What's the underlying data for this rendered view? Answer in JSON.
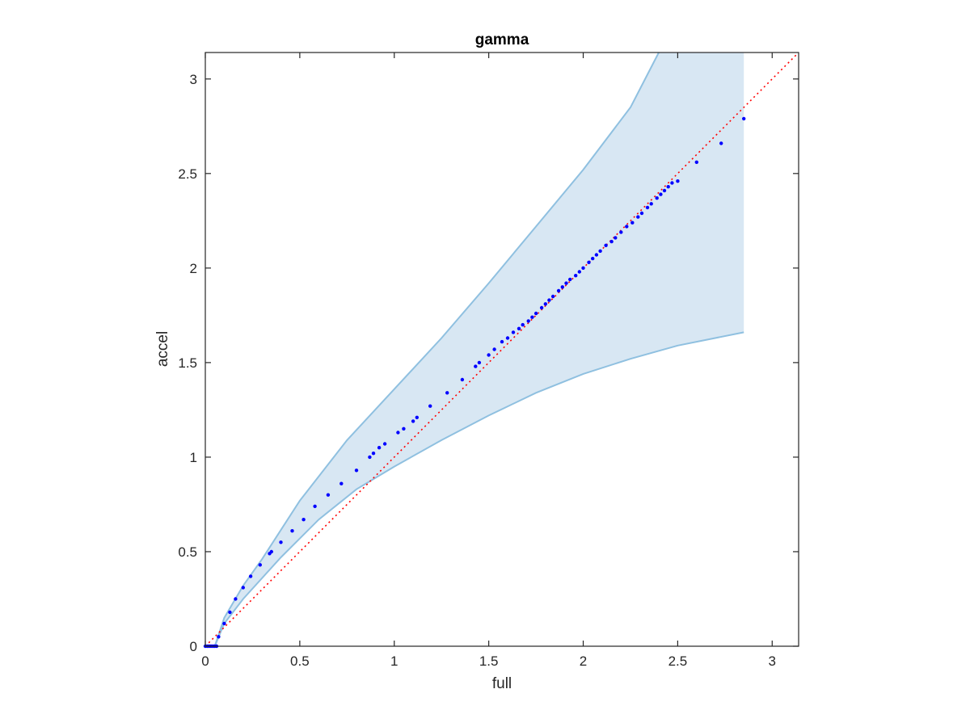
{
  "chart_data": {
    "type": "scatter",
    "title": "gamma",
    "xlabel": "full",
    "ylabel": "accel",
    "xlim": [
      0,
      3.14
    ],
    "ylim": [
      0,
      3.14
    ],
    "xticks": [
      "0",
      "0.5",
      "1",
      "1.5",
      "2",
      "2.5",
      "3"
    ],
    "yticks": [
      "0",
      "0.5",
      "1",
      "1.5",
      "2",
      "2.5",
      "3"
    ],
    "xtick_values": [
      0,
      0.5,
      1,
      1.5,
      2,
      2.5,
      3
    ],
    "ytick_values": [
      0,
      0.5,
      1,
      1.5,
      2,
      2.5,
      3
    ],
    "grid": false,
    "colors": {
      "points": "#0000ff",
      "band_fill": "#d8e7f3",
      "band_edge": "#8fc0e0",
      "reference_line": "#ff0000",
      "axes": "#262626"
    },
    "reference_line": {
      "style": "dotted",
      "from": [
        0,
        0
      ],
      "to": [
        3.14,
        3.14
      ]
    },
    "band": {
      "upper": [
        [
          0.05,
          0.0
        ],
        [
          0.1,
          0.15
        ],
        [
          0.2,
          0.32
        ],
        [
          0.3,
          0.46
        ],
        [
          0.5,
          0.77
        ],
        [
          0.75,
          1.09
        ],
        [
          1.0,
          1.36
        ],
        [
          1.25,
          1.63
        ],
        [
          1.5,
          1.92
        ],
        [
          1.75,
          2.22
        ],
        [
          2.0,
          2.52
        ],
        [
          2.25,
          2.85
        ],
        [
          2.4,
          3.14
        ],
        [
          2.85,
          3.14
        ]
      ],
      "lower": [
        [
          0.05,
          0.0
        ],
        [
          0.1,
          0.12
        ],
        [
          0.2,
          0.25
        ],
        [
          0.4,
          0.47
        ],
        [
          0.6,
          0.67
        ],
        [
          0.8,
          0.83
        ],
        [
          1.0,
          0.95
        ],
        [
          1.25,
          1.09
        ],
        [
          1.5,
          1.22
        ],
        [
          1.75,
          1.34
        ],
        [
          2.0,
          1.44
        ],
        [
          2.25,
          1.52
        ],
        [
          2.5,
          1.59
        ],
        [
          2.85,
          1.66
        ]
      ]
    },
    "points": [
      [
        0.0,
        0.0
      ],
      [
        0.01,
        0.0
      ],
      [
        0.02,
        0.0
      ],
      [
        0.03,
        0.0
      ],
      [
        0.04,
        0.0
      ],
      [
        0.05,
        0.0
      ],
      [
        0.06,
        0.0
      ],
      [
        0.07,
        0.05
      ],
      [
        0.1,
        0.12
      ],
      [
        0.13,
        0.18
      ],
      [
        0.16,
        0.25
      ],
      [
        0.2,
        0.31
      ],
      [
        0.24,
        0.37
      ],
      [
        0.29,
        0.43
      ],
      [
        0.34,
        0.49
      ],
      [
        0.35,
        0.5
      ],
      [
        0.4,
        0.55
      ],
      [
        0.46,
        0.61
      ],
      [
        0.52,
        0.67
      ],
      [
        0.58,
        0.74
      ],
      [
        0.65,
        0.8
      ],
      [
        0.72,
        0.86
      ],
      [
        0.8,
        0.93
      ],
      [
        0.87,
        1.0
      ],
      [
        0.89,
        1.02
      ],
      [
        0.92,
        1.05
      ],
      [
        0.95,
        1.07
      ],
      [
        1.02,
        1.13
      ],
      [
        1.05,
        1.15
      ],
      [
        1.1,
        1.19
      ],
      [
        1.12,
        1.21
      ],
      [
        1.19,
        1.27
      ],
      [
        1.28,
        1.34
      ],
      [
        1.36,
        1.41
      ],
      [
        1.43,
        1.48
      ],
      [
        1.45,
        1.5
      ],
      [
        1.5,
        1.54
      ],
      [
        1.53,
        1.57
      ],
      [
        1.57,
        1.61
      ],
      [
        1.6,
        1.63
      ],
      [
        1.63,
        1.66
      ],
      [
        1.66,
        1.68
      ],
      [
        1.68,
        1.7
      ],
      [
        1.71,
        1.72
      ],
      [
        1.73,
        1.74
      ],
      [
        1.75,
        1.76
      ],
      [
        1.78,
        1.79
      ],
      [
        1.8,
        1.81
      ],
      [
        1.82,
        1.83
      ],
      [
        1.84,
        1.85
      ],
      [
        1.87,
        1.88
      ],
      [
        1.89,
        1.9
      ],
      [
        1.91,
        1.92
      ],
      [
        1.93,
        1.94
      ],
      [
        1.96,
        1.96
      ],
      [
        1.98,
        1.98
      ],
      [
        2.0,
        2.0
      ],
      [
        2.03,
        2.03
      ],
      [
        2.05,
        2.05
      ],
      [
        2.07,
        2.07
      ],
      [
        2.09,
        2.09
      ],
      [
        2.12,
        2.12
      ],
      [
        2.15,
        2.14
      ],
      [
        2.17,
        2.16
      ],
      [
        2.2,
        2.19
      ],
      [
        2.23,
        2.22
      ],
      [
        2.26,
        2.24
      ],
      [
        2.29,
        2.27
      ],
      [
        2.31,
        2.29
      ],
      [
        2.34,
        2.32
      ],
      [
        2.36,
        2.34
      ],
      [
        2.39,
        2.37
      ],
      [
        2.41,
        2.39
      ],
      [
        2.43,
        2.41
      ],
      [
        2.45,
        2.43
      ],
      [
        2.47,
        2.45
      ],
      [
        2.5,
        2.46
      ],
      [
        2.6,
        2.56
      ],
      [
        2.73,
        2.66
      ],
      [
        2.85,
        2.79
      ]
    ]
  }
}
